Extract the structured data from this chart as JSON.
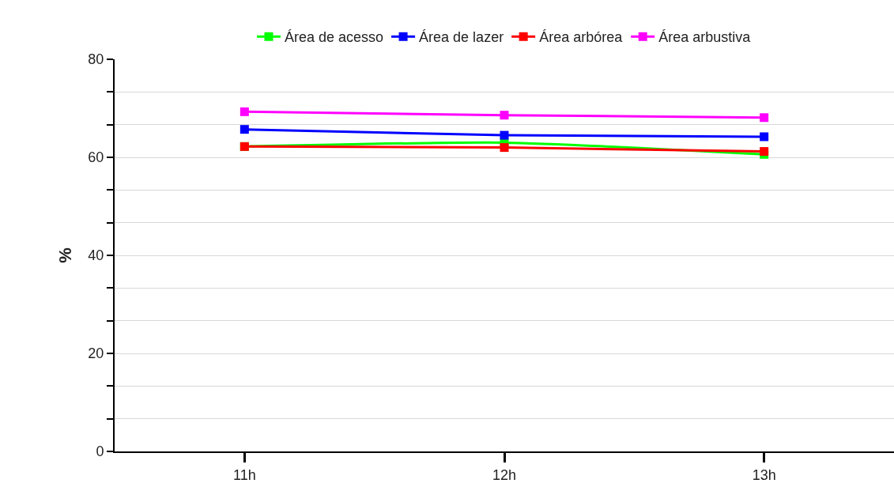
{
  "chart_data": {
    "type": "line",
    "ylabel": "%",
    "categories": [
      "11h",
      "12h",
      "13h"
    ],
    "series": [
      {
        "name": "Área de acesso",
        "color": "#00ff00",
        "values": [
          62.2,
          63.0,
          60.6
        ]
      },
      {
        "name": "Área de lazer",
        "color": "#0000ff",
        "values": [
          65.7,
          64.5,
          64.2
        ]
      },
      {
        "name": "Área arbórea",
        "color": "#ff0000",
        "values": [
          62.2,
          62.0,
          61.2
        ]
      },
      {
        "name": "Área arbustiva",
        "color": "#ff00ff",
        "values": [
          69.3,
          68.6,
          68.1
        ]
      }
    ],
    "ylim": [
      0,
      80
    ],
    "yticks": [
      0,
      {
        "value": 6.667,
        "label": null
      },
      {
        "value": 13.333,
        "label": null
      },
      20,
      {
        "value": 26.667,
        "label": null
      },
      {
        "value": 33.333,
        "label": null
      },
      40,
      {
        "value": 46.667,
        "label": null
      },
      {
        "value": 53.333,
        "label": null
      },
      60,
      {
        "value": 66.667,
        "label": null
      },
      {
        "value": 73.333,
        "label": null
      },
      80
    ],
    "grid": "y",
    "legend": "top",
    "marker": "square",
    "line_style": "solid"
  }
}
